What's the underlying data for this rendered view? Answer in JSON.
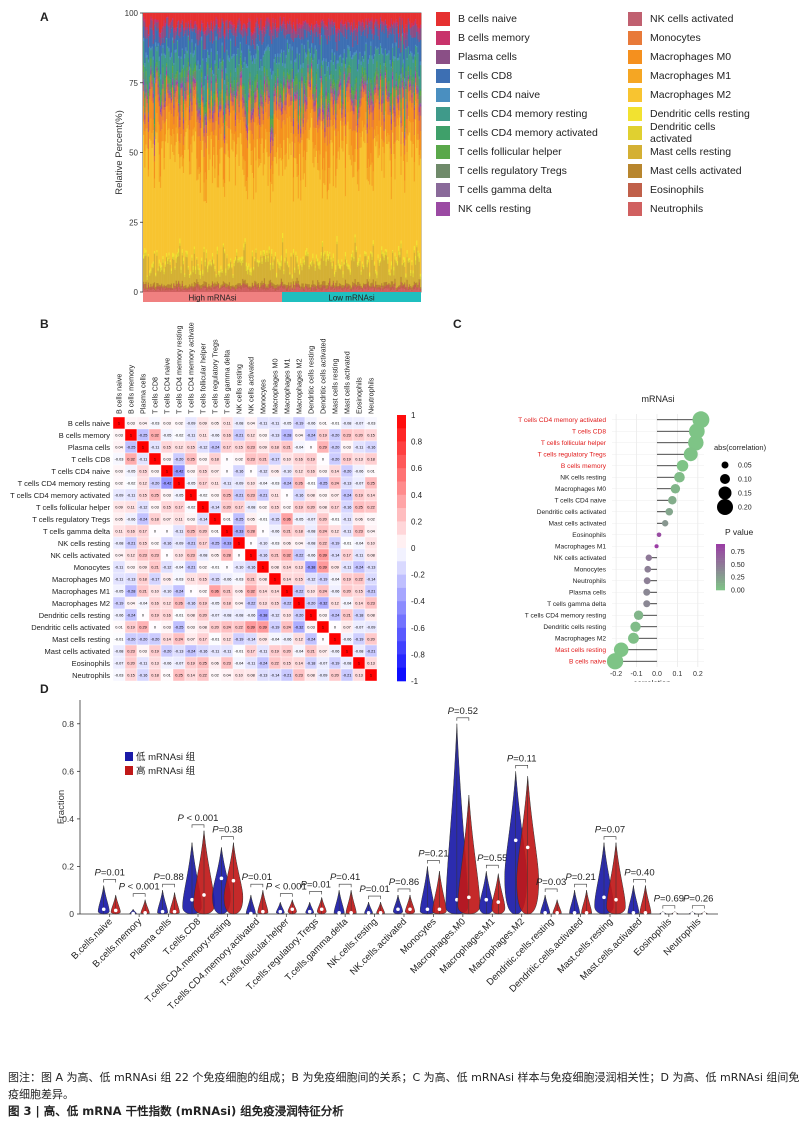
{
  "panels": {
    "a": "A",
    "b": "B",
    "c": "C",
    "d": "D"
  },
  "chart_data": [
    {
      "type": "stacked-bar",
      "panel": "A",
      "ylabel": "Relative Percent(%)",
      "yticks": [
        0,
        25,
        50,
        75,
        100
      ],
      "ylim": [
        0,
        100
      ],
      "groups": [
        {
          "label": "High mRNAsi",
          "color": "#f08080"
        },
        {
          "label": "Low mRNAsi",
          "color": "#1fbfbf"
        }
      ],
      "series": [
        {
          "name": "B cells naive",
          "color": "#e63030",
          "mean": 4
        },
        {
          "name": "B cells memory",
          "color": "#c8336b",
          "mean": 1
        },
        {
          "name": "Plasma cells",
          "color": "#8a4f86",
          "mean": 3
        },
        {
          "name": "T cells CD8",
          "color": "#3d6fb3",
          "mean": 7
        },
        {
          "name": "T cells CD4 naive",
          "color": "#4a8fc0",
          "mean": 1
        },
        {
          "name": "T cells CD4 memory resting",
          "color": "#3f9a8a",
          "mean": 8
        },
        {
          "name": "T cells CD4 memory activated",
          "color": "#3fa06a",
          "mean": 1
        },
        {
          "name": "T cells follicular helper",
          "color": "#5aa84a",
          "mean": 2
        },
        {
          "name": "T cells regulatory  Tregs",
          "color": "#6f8a6a",
          "mean": 2
        },
        {
          "name": "T cells gamma delta",
          "color": "#8a6a9a",
          "mean": 1
        },
        {
          "name": "NK cells resting",
          "color": "#9b4aa3",
          "mean": 1
        },
        {
          "name": "NK cells activated",
          "color": "#c06070",
          "mean": 2
        },
        {
          "name": "Monocytes",
          "color": "#e87a3a",
          "mean": 4
        },
        {
          "name": "Macrophages M0",
          "color": "#f5901e",
          "mean": 9
        },
        {
          "name": "Macrophages M1",
          "color": "#f5a623",
          "mean": 6
        },
        {
          "name": "Macrophages M2",
          "color": "#f8c430",
          "mean": 36
        },
        {
          "name": "Dendritic cells resting",
          "color": "#f2e230",
          "mean": 1
        },
        {
          "name": "Dendritic cells activated",
          "color": "#e0d030",
          "mean": 1
        },
        {
          "name": "Mast cells resting",
          "color": "#d4b034",
          "mean": 7
        },
        {
          "name": "Mast cells activated",
          "color": "#b8862e",
          "mean": 1
        },
        {
          "name": "Eosinophils",
          "color": "#c0604a",
          "mean": 1
        },
        {
          "name": "Neutrophils",
          "color": "#d06060",
          "mean": 1
        }
      ]
    },
    {
      "type": "heatmap",
      "panel": "B",
      "labels": [
        "B cells naive",
        "B cells memory",
        "Plasma cells",
        "T cells CD8",
        "T cells CD4 naive",
        "T cells CD4 memory resting",
        "T cells CD4 memory activated",
        "T cells follicular helper",
        "T cells regulatory  Tregs",
        "T cells gamma delta",
        "NK cells resting",
        "NK cells activated",
        "Monocytes",
        "Macrophages M0",
        "Macrophages M1",
        "Macrophages M2",
        "Dendritic cells resting",
        "Dendritic cells activated",
        "Mast cells resting",
        "Mast cells activated",
        "Eosinophils",
        "Neutrophils"
      ],
      "colorbar_ticks": [
        1,
        0.8,
        0.6,
        0.4,
        0.2,
        0,
        -0.2,
        -0.4,
        -0.6,
        -0.8,
        -1
      ],
      "first_row": [
        1,
        0.03,
        0.04,
        -0.03,
        0.03,
        0.02,
        -0.09,
        0.09,
        0.05,
        0.11,
        -0.08,
        0.04,
        -0.11,
        -0.11,
        -0.05,
        -0.19,
        -0.06,
        0.01,
        -0.01,
        -0.08,
        -0.07,
        -0.03
      ]
    },
    {
      "type": "lollipop",
      "panel": "C",
      "title": "mRNAsi",
      "xlabel": "correlation",
      "xticks": [
        -0.2,
        -0.1,
        0.0,
        0.1,
        0.2
      ],
      "xlim": [
        -0.22,
        0.23
      ],
      "size_legend_title": "abs(correlation)",
      "size_legend": [
        0.05,
        0.1,
        0.15,
        0.2
      ],
      "color_legend_title": "P value",
      "color_legend": [
        0.75,
        0.5,
        0.25,
        0.0
      ],
      "points": [
        {
          "label": "T cells CD4 memory activated",
          "r": 0.215,
          "p": 0.0,
          "sig": true
        },
        {
          "label": "T cells CD8",
          "r": 0.195,
          "p": 0.0,
          "sig": true
        },
        {
          "label": "T cells follicular helper",
          "r": 0.19,
          "p": 0.0,
          "sig": true
        },
        {
          "label": "T cells regulatory  Tregs",
          "r": 0.165,
          "p": 0.01,
          "sig": true
        },
        {
          "label": "B cells memory",
          "r": 0.125,
          "p": 0.0,
          "sig": true
        },
        {
          "label": "NK cells resting",
          "r": 0.11,
          "p": 0.05,
          "sig": false
        },
        {
          "label": "Macrophages M0",
          "r": 0.09,
          "p": 0.1,
          "sig": false
        },
        {
          "label": "T cells CD4 naive",
          "r": 0.075,
          "p": 0.15,
          "sig": false
        },
        {
          "label": "Dendritic cells activated",
          "r": 0.06,
          "p": 0.2,
          "sig": false
        },
        {
          "label": "Mast cells activated",
          "r": 0.04,
          "p": 0.3,
          "sig": false
        },
        {
          "label": "Eosinophils",
          "r": 0.01,
          "p": 0.8,
          "sig": false
        },
        {
          "label": "Macrophages M1",
          "r": -0.002,
          "p": 0.95,
          "sig": false
        },
        {
          "label": "NK cells activated",
          "r": -0.04,
          "p": 0.5,
          "sig": false
        },
        {
          "label": "Monocytes",
          "r": -0.045,
          "p": 0.45,
          "sig": false
        },
        {
          "label": "Neutrophils",
          "r": -0.048,
          "p": 0.45,
          "sig": false
        },
        {
          "label": "Plasma cells",
          "r": -0.05,
          "p": 0.4,
          "sig": false
        },
        {
          "label": "T cells gamma delta",
          "r": -0.05,
          "p": 0.4,
          "sig": false
        },
        {
          "label": "T cells CD4 memory resting",
          "r": -0.09,
          "p": 0.1,
          "sig": false
        },
        {
          "label": "Dendritic cells resting",
          "r": -0.105,
          "p": 0.05,
          "sig": false
        },
        {
          "label": "Macrophages M2",
          "r": -0.115,
          "p": 0.03,
          "sig": false
        },
        {
          "label": "Mast cells resting",
          "r": -0.175,
          "p": 0.0,
          "sig": true
        },
        {
          "label": "B cells naive",
          "r": -0.205,
          "p": 0.0,
          "sig": true
        }
      ]
    },
    {
      "type": "violin",
      "panel": "D",
      "ylabel": "Fraction",
      "yticks": [
        0,
        0.2,
        0.4,
        0.6,
        0.8
      ],
      "ylim": [
        0,
        0.9
      ],
      "legend": [
        {
          "name": "低 mRNAsi 组",
          "color": "#1a1aa8"
        },
        {
          "name": "高 mRNAsi 组",
          "color": "#c01818"
        }
      ],
      "groups": [
        {
          "label": "B.cells.naive",
          "p": "0.01",
          "low": {
            "max": 0.12,
            "med": 0.02
          },
          "high": {
            "max": 0.08,
            "med": 0.015
          }
        },
        {
          "label": "B.cells.memory",
          "p": "< 0.001",
          "low": {
            "max": 0.02,
            "med": 0.002
          },
          "high": {
            "max": 0.06,
            "med": 0.005
          }
        },
        {
          "label": "Plasma cells",
          "p": "0.88",
          "low": {
            "max": 0.1,
            "med": 0.01
          },
          "high": {
            "max": 0.09,
            "med": 0.01
          }
        },
        {
          "label": "T.cells.CD8",
          "p": "< 0.001",
          "low": {
            "max": 0.3,
            "med": 0.06
          },
          "high": {
            "max": 0.35,
            "med": 0.08
          }
        },
        {
          "label": "T.cells.CD4.memory.resting",
          "p": "0.38",
          "low": {
            "max": 0.28,
            "med": 0.15
          },
          "high": {
            "max": 0.3,
            "med": 0.14
          }
        },
        {
          "label": "T.cells.CD4.memory.activated",
          "p": "0.01",
          "low": {
            "max": 0.08,
            "med": 0.002
          },
          "high": {
            "max": 0.1,
            "med": 0.01
          }
        },
        {
          "label": "T.cells.follicular.helper",
          "p": "< 0.001",
          "low": {
            "max": 0.05,
            "med": 0.01
          },
          "high": {
            "max": 0.06,
            "med": 0.02
          }
        },
        {
          "label": "T.cells.regulatory.Tregs",
          "p": "0.01",
          "low": {
            "max": 0.05,
            "med": 0.01
          },
          "high": {
            "max": 0.07,
            "med": 0.02
          }
        },
        {
          "label": "T.cells.gamma.delta",
          "p": "0.41",
          "low": {
            "max": 0.1,
            "med": 0.005
          },
          "high": {
            "max": 0.1,
            "med": 0.005
          }
        },
        {
          "label": "NK.cells.resting",
          "p": "0.01",
          "low": {
            "max": 0.05,
            "med": 0.005
          },
          "high": {
            "max": 0.05,
            "med": 0.005
          }
        },
        {
          "label": "NK.cells.activated",
          "p": "0.86",
          "low": {
            "max": 0.08,
            "med": 0.02
          },
          "high": {
            "max": 0.08,
            "med": 0.02
          }
        },
        {
          "label": "Monocytes",
          "p": "0.21",
          "low": {
            "max": 0.2,
            "med": 0.02
          },
          "high": {
            "max": 0.18,
            "med": 0.02
          }
        },
        {
          "label": "Macrophages.M0",
          "p": "0.52",
          "low": {
            "max": 0.8,
            "med": 0.06
          },
          "high": {
            "max": 0.5,
            "med": 0.07
          }
        },
        {
          "label": "Macrophages.M1",
          "p": "0.55",
          "low": {
            "max": 0.18,
            "med": 0.06
          },
          "high": {
            "max": 0.17,
            "med": 0.05
          }
        },
        {
          "label": "Macrophages.M2",
          "p": "0.11",
          "low": {
            "max": 0.6,
            "med": 0.31
          },
          "high": {
            "max": 0.58,
            "med": 0.28
          }
        },
        {
          "label": "Dendritic.cells.resting",
          "p": "0.03",
          "low": {
            "max": 0.08,
            "med": 0.005
          },
          "high": {
            "max": 0.06,
            "med": 0.005
          }
        },
        {
          "label": "Dendritic.cells.activated",
          "p": "0.21",
          "low": {
            "max": 0.1,
            "med": 0.005
          },
          "high": {
            "max": 0.1,
            "med": 0.005
          }
        },
        {
          "label": "Mast.cells.resting",
          "p": "0.07",
          "low": {
            "max": 0.3,
            "med": 0.07
          },
          "high": {
            "max": 0.3,
            "med": 0.06
          }
        },
        {
          "label": "Mast.cells.activated",
          "p": "0.40",
          "low": {
            "max": 0.12,
            "med": 0.005
          },
          "high": {
            "max": 0.12,
            "med": 0.005
          }
        },
        {
          "label": "Eosinophils",
          "p": "0.69",
          "low": {
            "max": 0.01,
            "med": 0.001
          },
          "high": {
            "max": 0.01,
            "med": 0.001
          }
        },
        {
          "label": "Neutrophils",
          "p": "0.26",
          "low": {
            "max": 0.01,
            "med": 0.001
          },
          "high": {
            "max": 0.01,
            "med": 0.001
          }
        }
      ]
    }
  ],
  "caption": "图注：图 A 为高、低 mRNAsi 组 22 个免疫细胞的组成；B 为免疫细胞间的关系；C 为高、低 mRNAsi 样本与免疫细胞浸润相关性；D 为高、低 mRNAsi 组间免疫细胞差异。",
  "figure_title": "图 3  |  高、低 mRNA 干性指数 (mRNAsi) 组免疫浸润特征分析"
}
